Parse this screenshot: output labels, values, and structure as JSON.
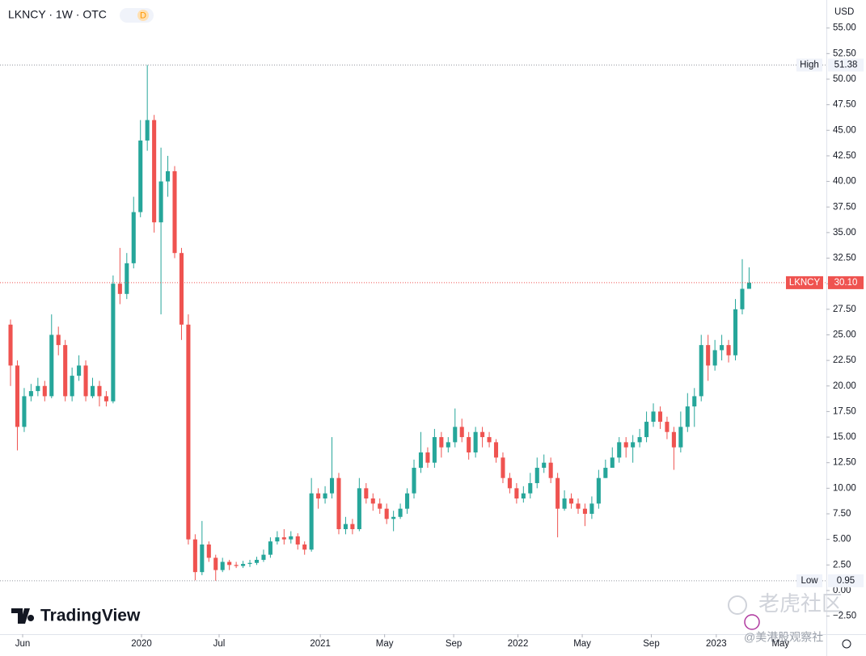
{
  "header": {
    "symbol": "LKNCY · 1W · OTC",
    "badge": "D",
    "currency": "USD"
  },
  "chart_data": {
    "type": "candlestick",
    "open": [
      26,
      22,
      16,
      19,
      19.5,
      20,
      19,
      25,
      24,
      19,
      21,
      22,
      19,
      20,
      19,
      18.5,
      30,
      29,
      32,
      37,
      44,
      46,
      36,
      40,
      41,
      33,
      26,
      5,
      1.8,
      4.5,
      3.2,
      2,
      2.8,
      2.5,
      2.4,
      2.6,
      2.7,
      3,
      3.5,
      4.8,
      5.2,
      5,
      5.3,
      4.5,
      4,
      9.5,
      9,
      9.5,
      11,
      6,
      6.5,
      6,
      10,
      9,
      8.5,
      8,
      7,
      7.2,
      8,
      9.5,
      12,
      13.5,
      12.5,
      15,
      14,
      14.5,
      16,
      15,
      13.5,
      15.5,
      15,
      14.5,
      13,
      11,
      10,
      9,
      9.5,
      10.5,
      12,
      12.5,
      11,
      8,
      9,
      8.5,
      8,
      7.5,
      8.5,
      11,
      12,
      13,
      14.5,
      14,
      14.5,
      15,
      16.5,
      17.5,
      16.5,
      15.5,
      14,
      16,
      18,
      19,
      24,
      22,
      23.5,
      24,
      23,
      27.5,
      29.5
    ],
    "high": [
      26.5,
      22.5,
      19.8,
      20.2,
      20.8,
      20.5,
      27,
      25.8,
      24.5,
      21.8,
      23,
      22.5,
      20.8,
      20.5,
      19.5,
      30.8,
      33.5,
      33,
      38.5,
      46,
      51.38,
      46.5,
      43.3,
      42.5,
      41.5,
      33.5,
      27,
      5.5,
      6.8,
      4.8,
      3.5,
      3.2,
      3,
      2.8,
      2.9,
      3,
      3.3,
      4,
      5.2,
      5.8,
      6,
      5.8,
      5.6,
      4.8,
      11,
      10,
      10.2,
      15,
      11.5,
      7.2,
      7,
      11,
      10.5,
      9.5,
      9,
      8.5,
      7.8,
      8.5,
      10,
      12.8,
      15.5,
      14,
      15.8,
      15.5,
      15,
      17.8,
      16.8,
      15.5,
      16,
      16,
      15.5,
      14.8,
      13.5,
      11.5,
      10.5,
      10.2,
      11.5,
      13,
      13.3,
      13,
      11.5,
      9.8,
      9.5,
      9,
      8.5,
      9.2,
      11.8,
      12.8,
      14,
      15,
      15,
      15.2,
      15.8,
      17.5,
      18.3,
      18,
      17,
      16,
      17.5,
      19.3,
      19.8,
      25,
      25,
      24.5,
      25,
      24.5,
      28.5,
      32.4,
      31.6
    ],
    "low": [
      20,
      13.7,
      15.5,
      18.5,
      19,
      18.5,
      18.8,
      23,
      18.5,
      18.5,
      20.5,
      18.5,
      18.8,
      18,
      18,
      18.3,
      28,
      28.5,
      31.5,
      36.5,
      43,
      35,
      27,
      38.5,
      32.5,
      24.5,
      4.5,
      1,
      1.5,
      2.8,
      0.95,
      1.8,
      2,
      2.2,
      2.2,
      2.3,
      2.5,
      2.8,
      3.2,
      4.5,
      4.5,
      4.6,
      4,
      3.5,
      3.8,
      8,
      8.5,
      9,
      5.5,
      5.5,
      5.5,
      5.8,
      8.5,
      7.8,
      7.5,
      6.5,
      5.8,
      7,
      7.5,
      9,
      11.5,
      12,
      12,
      13,
      13.5,
      14,
      14.5,
      12.8,
      13,
      14,
      14,
      12.5,
      10.5,
      9.5,
      8.5,
      8.6,
      9,
      10,
      11.5,
      10.5,
      5.2,
      7.8,
      8,
      7.5,
      6.3,
      7,
      8,
      11,
      12,
      12.5,
      13,
      12.5,
      14,
      14.5,
      16,
      15.8,
      14.8,
      11.8,
      13.5,
      15.5,
      16,
      18.5,
      20.5,
      21.5,
      22.5,
      22.3,
      22.5,
      27,
      29.5
    ],
    "close": [
      22,
      16,
      19,
      19.5,
      20,
      19,
      25,
      24,
      19,
      21,
      22,
      19,
      20,
      19,
      18.5,
      30,
      29,
      32,
      37,
      44,
      46,
      36,
      40,
      41,
      33,
      26,
      5,
      1.8,
      4.5,
      3.2,
      2,
      2.8,
      2.5,
      2.4,
      2.6,
      2.7,
      3,
      3.5,
      4.8,
      5.2,
      5,
      5.3,
      4.5,
      4,
      9.5,
      9,
      9.5,
      11,
      6,
      6.5,
      6,
      10,
      9,
      8.5,
      8,
      7,
      7.2,
      8,
      9.5,
      12,
      13.5,
      12.5,
      15,
      14,
      14.5,
      16,
      15,
      13.5,
      15.5,
      15,
      14.5,
      13,
      11,
      10,
      9,
      9.5,
      10.5,
      12,
      12.5,
      11,
      8,
      9,
      8.5,
      8,
      7.5,
      8.5,
      11,
      12,
      13,
      14.5,
      14,
      14.5,
      15,
      16.5,
      17.5,
      16.5,
      15.5,
      14,
      16,
      18,
      19,
      24,
      22,
      23.5,
      24,
      23,
      27.5,
      29.5,
      30.1
    ],
    "up_color": "#26a69a",
    "down_color": "#ef5350",
    "xlim": [
      -1.54,
      119.3
    ],
    "xticks": [
      {
        "value": 1.77,
        "label": "Jun"
      },
      {
        "value": 19.15,
        "label": "2020"
      },
      {
        "value": 30.5,
        "label": "Jul"
      },
      {
        "value": 45.3,
        "label": "2021"
      },
      {
        "value": 54.7,
        "label": "May"
      },
      {
        "value": 64.8,
        "label": "Sep"
      },
      {
        "value": 74.2,
        "label": "2022"
      },
      {
        "value": 83.6,
        "label": "May"
      },
      {
        "value": 93.7,
        "label": "Sep"
      },
      {
        "value": 103.2,
        "label": "2023"
      },
      {
        "value": 112.6,
        "label": "May"
      }
    ],
    "ylim": [
      -4.27,
      57.74
    ],
    "yticks": [
      {
        "value": 55,
        "label": "55.00"
      },
      {
        "value": 52.5,
        "label": "52.50"
      },
      {
        "value": 50,
        "label": "50.00"
      },
      {
        "value": 47.5,
        "label": "47.50"
      },
      {
        "value": 45,
        "label": "45.00"
      },
      {
        "value": 42.5,
        "label": "42.50"
      },
      {
        "value": 40,
        "label": "40.00"
      },
      {
        "value": 37.5,
        "label": "37.50"
      },
      {
        "value": 35,
        "label": "35.00"
      },
      {
        "value": 32.5,
        "label": "32.50"
      },
      {
        "value": 30,
        "label": "30.00"
      },
      {
        "value": 27.5,
        "label": "27.50"
      },
      {
        "value": 25,
        "label": "25.00"
      },
      {
        "value": 22.5,
        "label": "22.50"
      },
      {
        "value": 20,
        "label": "20.00"
      },
      {
        "value": 17.5,
        "label": "17.50"
      },
      {
        "value": 15,
        "label": "15.00"
      },
      {
        "value": 12.5,
        "label": "12.50"
      },
      {
        "value": 10,
        "label": "10.00"
      },
      {
        "value": 7.5,
        "label": "7.50"
      },
      {
        "value": 5,
        "label": "5.00"
      },
      {
        "value": 2.5,
        "label": "2.50"
      },
      {
        "value": 0,
        "label": "0.00"
      },
      {
        "value": -2.5,
        "label": "−2.50"
      }
    ],
    "high_marker": {
      "label": "High",
      "value": 51.38
    },
    "low_marker": {
      "label": "Low",
      "value": 0.95
    },
    "last_marker": {
      "label": "LKNCY",
      "value": 30.1,
      "value_label": "30.10"
    }
  },
  "branding": {
    "logo": "TradingView"
  },
  "watermark": {
    "title": "老虎社区",
    "handle": "@美港股观察社"
  }
}
